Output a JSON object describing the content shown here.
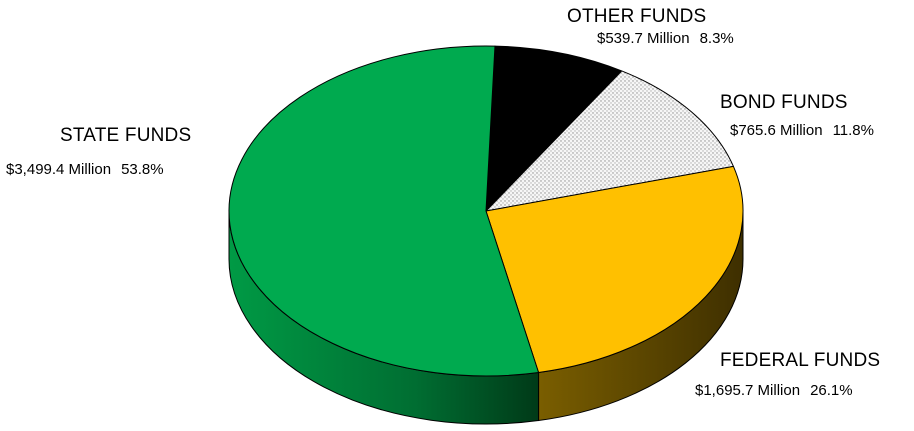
{
  "chart_data": {
    "type": "pie",
    "title": "",
    "slices": [
      {
        "name": "STATE FUNDS",
        "amount": "$3,499.4 Million",
        "value": 3499.4,
        "percent": "53.8%",
        "color": "#00aa4f",
        "side_color": "#007a38"
      },
      {
        "name": "OTHER FUNDS",
        "amount": "$539.7 Million",
        "value": 539.7,
        "percent": "8.3%",
        "color": "#000000",
        "side_color": "#000000"
      },
      {
        "name": "BOND FUNDS",
        "amount": "$765.6 Million",
        "value": 765.6,
        "percent": "11.8%",
        "color": "#f4f4f4",
        "side_color": "#bfbfbf",
        "pattern": "dotted"
      },
      {
        "name": "FEDERAL FUNDS",
        "amount": "$1,695.7 Million",
        "value": 1695.7,
        "percent": "26.1%",
        "color": "#ffc000",
        "side_color": "#6b5200"
      }
    ]
  }
}
